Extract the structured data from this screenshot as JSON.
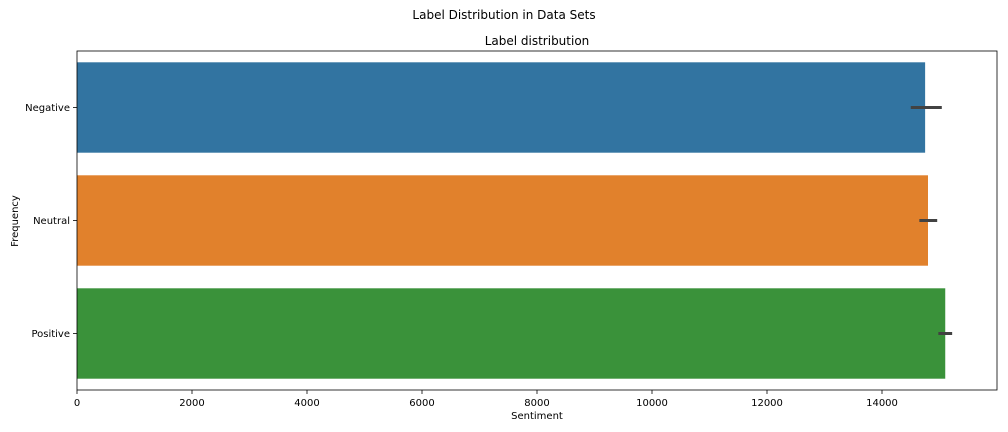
{
  "chart_data": {
    "type": "bar",
    "orientation": "horizontal",
    "suptitle": "Label Distribution in Data Sets",
    "title": "Label distribution",
    "xlabel": "Sentiment",
    "ylabel": "Frequency",
    "categories": [
      "Negative",
      "Neutral",
      "Positive"
    ],
    "values": [
      14750,
      14800,
      15100
    ],
    "error_low": [
      14500,
      14650,
      14980
    ],
    "error_high": [
      15040,
      14960,
      15220
    ],
    "colors": [
      "#3274a1",
      "#e1812c",
      "#3a923a"
    ],
    "xlim": [
      0,
      16000
    ],
    "xticks": [
      0,
      2000,
      4000,
      6000,
      8000,
      10000,
      12000,
      14000
    ],
    "grid": false
  }
}
